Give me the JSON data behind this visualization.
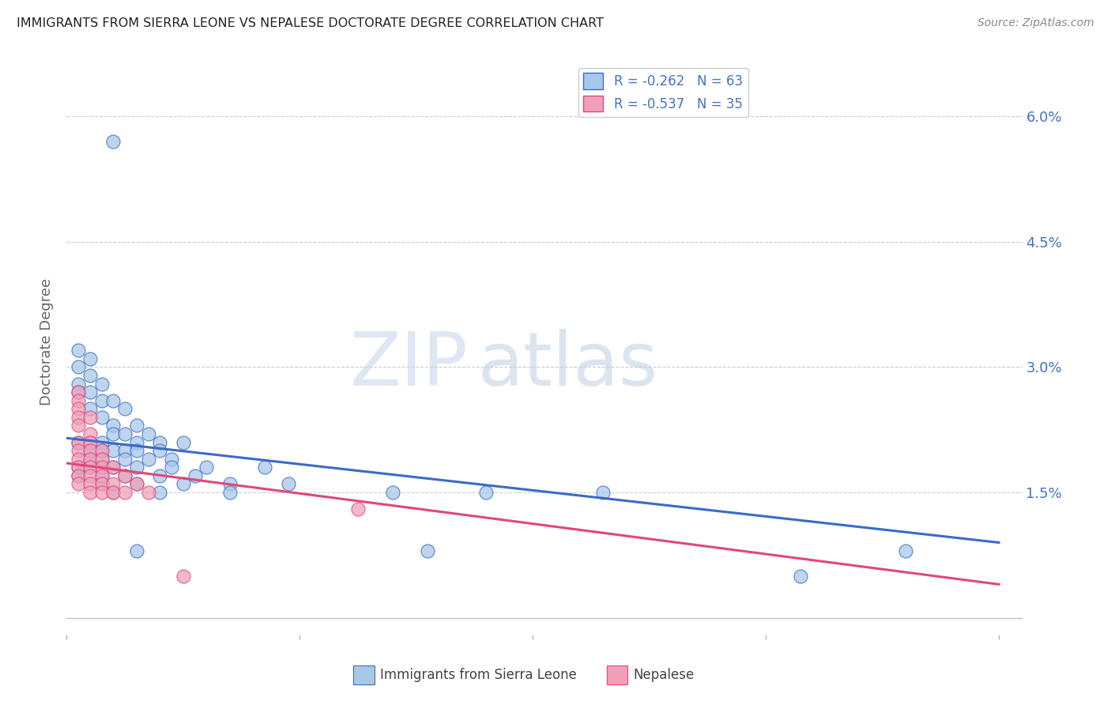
{
  "title": "IMMIGRANTS FROM SIERRA LEONE VS NEPALESE DOCTORATE DEGREE CORRELATION CHART",
  "source": "Source: ZipAtlas.com",
  "ylabel": "Doctorate Degree",
  "ytick_labels": [
    "6.0%",
    "4.5%",
    "3.0%",
    "1.5%"
  ],
  "ytick_values": [
    0.06,
    0.045,
    0.03,
    0.015
  ],
  "xlim": [
    0.0,
    0.082
  ],
  "ylim": [
    -0.002,
    0.068
  ],
  "ylim_display": [
    0.0,
    0.065
  ],
  "legend1_label": "R = -0.262   N = 63",
  "legend2_label": "R = -0.537   N = 35",
  "scatter_blue_color": "#a8c8e8",
  "scatter_pink_color": "#f0a0b8",
  "line_blue_color": "#3a6bc8",
  "line_pink_color": "#e04878",
  "watermark_zip": "ZIP",
  "watermark_atlas": "atlas",
  "blue_dots": [
    [
      0.004,
      0.057
    ],
    [
      0.001,
      0.032
    ],
    [
      0.002,
      0.031
    ],
    [
      0.001,
      0.03
    ],
    [
      0.002,
      0.029
    ],
    [
      0.001,
      0.028
    ],
    [
      0.003,
      0.028
    ],
    [
      0.001,
      0.027
    ],
    [
      0.002,
      0.027
    ],
    [
      0.003,
      0.026
    ],
    [
      0.004,
      0.026
    ],
    [
      0.002,
      0.025
    ],
    [
      0.005,
      0.025
    ],
    [
      0.003,
      0.024
    ],
    [
      0.004,
      0.023
    ],
    [
      0.006,
      0.023
    ],
    [
      0.004,
      0.022
    ],
    [
      0.005,
      0.022
    ],
    [
      0.007,
      0.022
    ],
    [
      0.001,
      0.021
    ],
    [
      0.002,
      0.021
    ],
    [
      0.003,
      0.021
    ],
    [
      0.006,
      0.021
    ],
    [
      0.008,
      0.021
    ],
    [
      0.01,
      0.021
    ],
    [
      0.002,
      0.02
    ],
    [
      0.003,
      0.02
    ],
    [
      0.004,
      0.02
    ],
    [
      0.005,
      0.02
    ],
    [
      0.006,
      0.02
    ],
    [
      0.008,
      0.02
    ],
    [
      0.002,
      0.019
    ],
    [
      0.003,
      0.019
    ],
    [
      0.005,
      0.019
    ],
    [
      0.007,
      0.019
    ],
    [
      0.009,
      0.019
    ],
    [
      0.001,
      0.018
    ],
    [
      0.002,
      0.018
    ],
    [
      0.004,
      0.018
    ],
    [
      0.006,
      0.018
    ],
    [
      0.009,
      0.018
    ],
    [
      0.012,
      0.018
    ],
    [
      0.017,
      0.018
    ],
    [
      0.001,
      0.017
    ],
    [
      0.003,
      0.017
    ],
    [
      0.005,
      0.017
    ],
    [
      0.008,
      0.017
    ],
    [
      0.011,
      0.017
    ],
    [
      0.003,
      0.016
    ],
    [
      0.006,
      0.016
    ],
    [
      0.01,
      0.016
    ],
    [
      0.014,
      0.016
    ],
    [
      0.019,
      0.016
    ],
    [
      0.004,
      0.015
    ],
    [
      0.008,
      0.015
    ],
    [
      0.014,
      0.015
    ],
    [
      0.028,
      0.015
    ],
    [
      0.036,
      0.015
    ],
    [
      0.046,
      0.015
    ],
    [
      0.006,
      0.008
    ],
    [
      0.031,
      0.008
    ],
    [
      0.063,
      0.005
    ],
    [
      0.072,
      0.008
    ]
  ],
  "pink_dots": [
    [
      0.001,
      0.027
    ],
    [
      0.001,
      0.026
    ],
    [
      0.001,
      0.025
    ],
    [
      0.001,
      0.024
    ],
    [
      0.002,
      0.024
    ],
    [
      0.001,
      0.023
    ],
    [
      0.002,
      0.022
    ],
    [
      0.001,
      0.021
    ],
    [
      0.002,
      0.021
    ],
    [
      0.001,
      0.02
    ],
    [
      0.002,
      0.02
    ],
    [
      0.003,
      0.02
    ],
    [
      0.001,
      0.019
    ],
    [
      0.002,
      0.019
    ],
    [
      0.003,
      0.019
    ],
    [
      0.001,
      0.018
    ],
    [
      0.002,
      0.018
    ],
    [
      0.003,
      0.018
    ],
    [
      0.004,
      0.018
    ],
    [
      0.001,
      0.017
    ],
    [
      0.002,
      0.017
    ],
    [
      0.003,
      0.017
    ],
    [
      0.005,
      0.017
    ],
    [
      0.001,
      0.016
    ],
    [
      0.002,
      0.016
    ],
    [
      0.003,
      0.016
    ],
    [
      0.004,
      0.016
    ],
    [
      0.006,
      0.016
    ],
    [
      0.002,
      0.015
    ],
    [
      0.003,
      0.015
    ],
    [
      0.004,
      0.015
    ],
    [
      0.005,
      0.015
    ],
    [
      0.007,
      0.015
    ],
    [
      0.025,
      0.013
    ],
    [
      0.01,
      0.005
    ]
  ],
  "blue_line_x": [
    0.0,
    0.08
  ],
  "blue_line_y": [
    0.0215,
    0.009
  ],
  "pink_line_x": [
    0.0,
    0.08
  ],
  "pink_line_y": [
    0.0185,
    0.004
  ],
  "xtick_positions": [
    0.0,
    0.02,
    0.04,
    0.06,
    0.08
  ],
  "bottom_legend": [
    {
      "label": "Immigrants from Sierra Leone",
      "color": "#a8c8e8",
      "edge": "#3a6bc8"
    },
    {
      "label": "Nepalese",
      "color": "#f0a0b8",
      "edge": "#e04878"
    }
  ]
}
